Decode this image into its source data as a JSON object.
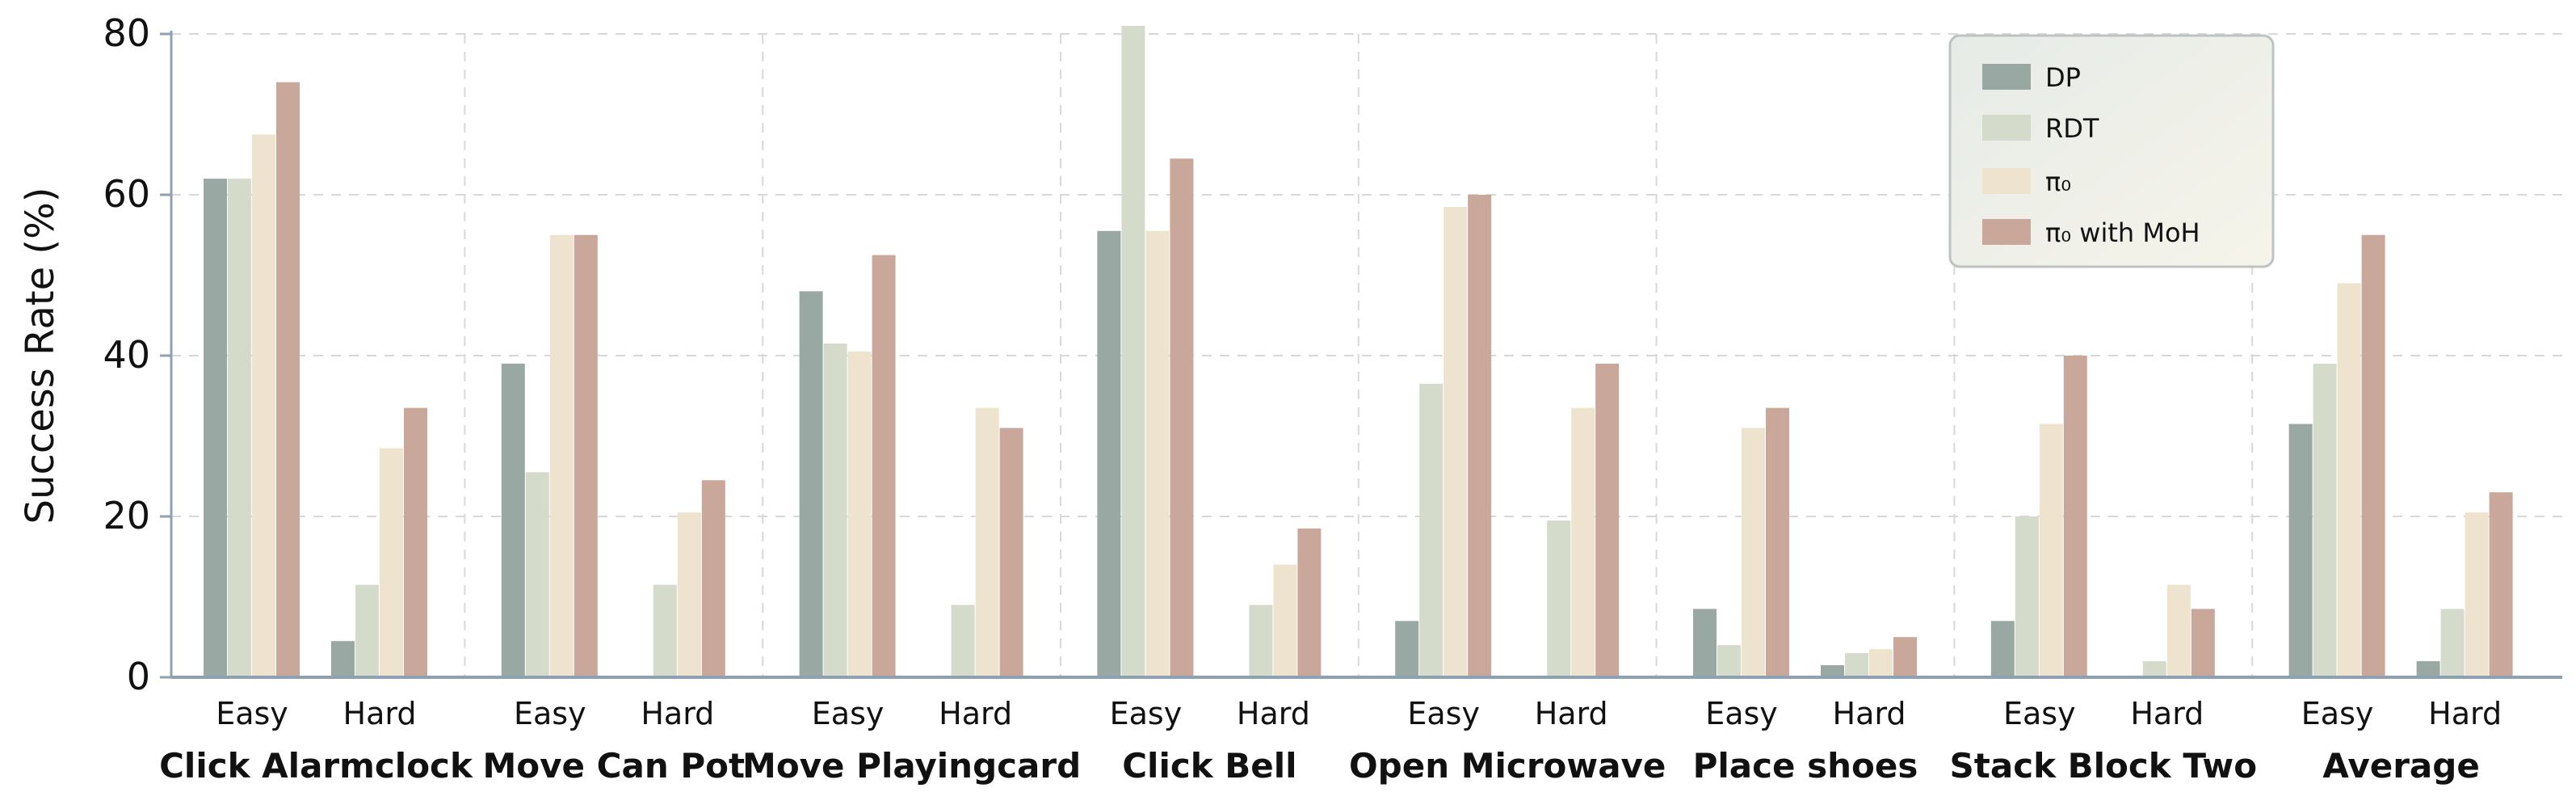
{
  "chart_data": {
    "type": "bar",
    "xlabel": "",
    "ylabel": "Success Rate (%)",
    "ylim": [
      0,
      80
    ],
    "yticks": [
      0,
      20,
      40,
      60,
      80
    ],
    "grid": "horizontal dashed",
    "legend_position": "top-right",
    "groups": [
      "Click Alarmclock",
      "Move Can Pot",
      "Move Playingcard",
      "Click Bell",
      "Open Microwave",
      "Place shoes",
      "Stack Block Two",
      "Average"
    ],
    "subcategories": [
      "Easy",
      "Hard"
    ],
    "series": [
      {
        "name": "DP",
        "color": "#9aa8a4",
        "values": [
          [
            62,
            4.5
          ],
          [
            39,
            0
          ],
          [
            48,
            0
          ],
          [
            55.5,
            0
          ],
          [
            7,
            0
          ],
          [
            8.5,
            1.5
          ],
          [
            7,
            0
          ],
          [
            31.5,
            2
          ]
        ]
      },
      {
        "name": "RDT",
        "color": "#d5dbcb",
        "values": [
          [
            62,
            11.5
          ],
          [
            25.5,
            11.5
          ],
          [
            41.5,
            9
          ],
          [
            81,
            9
          ],
          [
            36.5,
            19.5
          ],
          [
            4,
            3
          ],
          [
            20,
            2
          ],
          [
            39,
            8.5
          ]
        ]
      },
      {
        "name": "π₀",
        "color": "#ede3cf",
        "values": [
          [
            67.5,
            28.5
          ],
          [
            55,
            20.5
          ],
          [
            40.5,
            33.5
          ],
          [
            55.5,
            14
          ],
          [
            58.5,
            33.5
          ],
          [
            31,
            3.5
          ],
          [
            31.5,
            11.5
          ],
          [
            49,
            20.5
          ]
        ]
      },
      {
        "name": "π₀ with MoH",
        "color": "#caa79b",
        "values": [
          [
            74,
            33.5
          ],
          [
            55,
            24.5
          ],
          [
            52.5,
            31
          ],
          [
            64.5,
            18.5
          ],
          [
            60,
            39
          ],
          [
            33.5,
            5
          ],
          [
            40,
            8.5
          ],
          [
            55,
            23
          ]
        ]
      }
    ]
  }
}
